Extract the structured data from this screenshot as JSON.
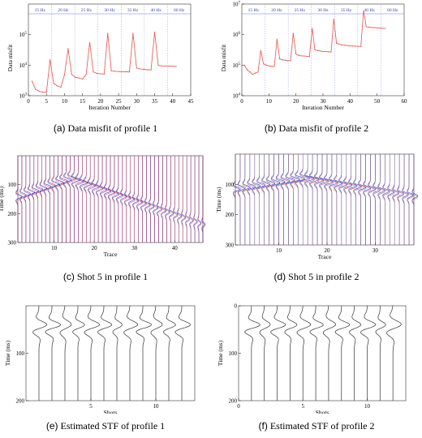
{
  "figures": [
    {
      "label": "(a)",
      "caption": "Data misfit of profile 1",
      "chart_data": {
        "type": "line",
        "ylabel": "Data misfit",
        "xlabel": "Iteration Number",
        "yscale": "log",
        "ylim": [
          1000.0,
          1000000.0
        ],
        "ytick_labels": [
          "10^3",
          "10^4",
          "10^5"
        ],
        "xticks": [
          0,
          5,
          10,
          15,
          20,
          25,
          30,
          35,
          40,
          45
        ],
        "xlim": [
          0,
          45
        ],
        "band_labels": [
          "15 Hz",
          "20 Hz",
          "25 Hz",
          "30 Hz",
          "35 Hz",
          "40 Hz",
          "60 Hz"
        ],
        "series": [
          {
            "color": "#e8524a",
            "x": [
              1,
              2,
              3,
              4,
              5,
              6,
              7,
              8,
              9,
              10,
              11,
              12,
              13,
              14,
              15,
              16,
              17,
              18,
              19,
              20,
              21,
              22,
              23,
              24,
              25,
              26,
              27,
              28,
              29,
              30,
              31,
              32,
              33,
              34,
              35,
              36,
              37,
              38,
              39,
              40,
              41
            ],
            "y": [
              3000,
              1600,
              1400,
              1300,
              1300,
              15000,
              2500,
              2100,
              1900,
              4800,
              35000,
              5000,
              4000,
              3800,
              3500,
              5000,
              55000,
              6000,
              5400,
              5200,
              5100,
              110000,
              6500,
              6300,
              6200,
              6100,
              6050,
              6000,
              110000,
              8000,
              7500,
              7300,
              7100,
              7000,
              120000,
              9800,
              9500,
              9400,
              9300,
              9200,
              9000
            ]
          }
        ]
      }
    },
    {
      "label": "(b)",
      "caption": "Data misfit of profile 2",
      "chart_data": {
        "type": "line",
        "ylabel": "Data misfit",
        "xlabel": "Iteration Number",
        "yscale": "log",
        "ylim": [
          10000.0,
          10000000.0
        ],
        "ytick_labels": [
          "10^4",
          "10^5",
          "10^6",
          "10^7"
        ],
        "xticks": [
          0,
          10,
          20,
          30,
          40,
          50,
          60
        ],
        "xlim": [
          0,
          60
        ],
        "band_labels": [
          "15 Hz",
          "20 Hz",
          "25 Hz",
          "30 Hz",
          "35 Hz",
          "40 Hz",
          "60 Hz"
        ],
        "series": [
          {
            "color": "#e8524a",
            "x": [
              1,
              2,
              3,
              4,
              5,
              6,
              7,
              8,
              9,
              10,
              11,
              12,
              13,
              14,
              15,
              16,
              17,
              18,
              19,
              20,
              21,
              22,
              23,
              24,
              25,
              26,
              27,
              28,
              29,
              30,
              31,
              32,
              33,
              34,
              35,
              36,
              37,
              38,
              39,
              40,
              41,
              42,
              43,
              44,
              45,
              46,
              47,
              48,
              49,
              50,
              51,
              52,
              53
            ],
            "y": [
              100000,
              70000,
              60000,
              50000,
              55000,
              60000,
              300000,
              110000,
              100000,
              95000,
              90000,
              90000,
              700000,
              160000,
              150000,
              145000,
              140000,
              140000,
              1100000,
              230000,
              210000,
              200000,
              200000,
              195000,
              190000,
              1600000,
              320000,
              300000,
              290000,
              280000,
              280000,
              275000,
              270000,
              3200000,
              520000,
              480000,
              460000,
              450000,
              440000,
              430000,
              420000,
              420000,
              410000,
              410000,
              6000000,
              1800000,
              1750000,
              1700000,
              1700000,
              1650000,
              1650000,
              1600000,
              1600000
            ]
          }
        ]
      }
    },
    {
      "label": "(c)",
      "caption": "Shot 5 in profile 1",
      "chart_data": {
        "type": "wiggle",
        "xlabel": "Trace",
        "ylabel": "Time (ms)",
        "xticks": [
          10,
          20,
          30,
          40
        ],
        "yticks": [
          100,
          200,
          300
        ],
        "xlim": [
          1,
          47
        ],
        "ylim": [
          0,
          300
        ],
        "traces": 47,
        "source_trace": 14,
        "colors": [
          "#1b2bd6",
          "#c8242a"
        ]
      }
    },
    {
      "label": "(d)",
      "caption": "Shot 5 in profile 2",
      "chart_data": {
        "type": "wiggle",
        "xlabel": "Trace",
        "ylabel": "Time (ms)",
        "xticks": [
          10,
          20,
          30
        ],
        "yticks": [
          100,
          200,
          300
        ],
        "xlim": [
          1,
          38
        ],
        "ylim": [
          0,
          300
        ],
        "traces": 38,
        "source_trace": 15,
        "colors": [
          "#1b2bd6",
          "#c8242a"
        ]
      }
    },
    {
      "label": "(e)",
      "caption": "Estimated STF of profile 1",
      "chart_data": {
        "type": "wiggle",
        "xlabel": "Shots",
        "ylabel": "Time (ms)",
        "xticks": [
          5,
          10
        ],
        "yticks": [
          100,
          200
        ],
        "xlim": [
          0,
          13
        ],
        "ylim": [
          0,
          200
        ],
        "traces": 12
      }
    },
    {
      "label": "(f)",
      "caption": "Estimated STF of profile 2",
      "chart_data": {
        "type": "wiggle",
        "xlabel": "Shots",
        "ylabel": "Time (ms)",
        "xticks": [
          0,
          5,
          10
        ],
        "yticks": [
          0,
          100,
          200
        ],
        "xlim": [
          0,
          13
        ],
        "ylim": [
          0,
          200
        ],
        "traces": 12
      }
    }
  ]
}
